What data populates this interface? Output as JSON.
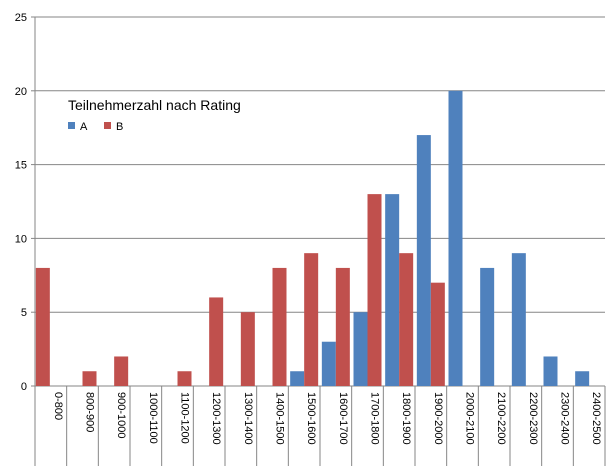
{
  "chart_data": {
    "type": "bar",
    "title": "Teilnehmerzahl nach Rating",
    "xlabel": "",
    "ylabel": "",
    "ylim": [
      0,
      25
    ],
    "yticks": [
      0,
      5,
      10,
      15,
      20,
      25
    ],
    "grid": true,
    "legend_position": "top-left",
    "categories": [
      "0-800",
      "800-900",
      "900-1000",
      "1000-1100",
      "1100-1200",
      "1200-1300",
      "1300-1400",
      "1400-1500",
      "1500-1600",
      "1600-1700",
      "1700-1800",
      "1800-1900",
      "1900-2000",
      "2000-2100",
      "2100-2200",
      "2200-2300",
      "2300-2400",
      "2400-2500"
    ],
    "series": [
      {
        "name": "A",
        "color": "#4f81bd",
        "values": [
          0,
          0,
          0,
          0,
          0,
          0,
          0,
          0,
          1,
          3,
          5,
          13,
          17,
          20,
          8,
          9,
          2,
          1
        ]
      },
      {
        "name": "B",
        "color": "#c0504d",
        "values": [
          8,
          1,
          2,
          0,
          1,
          6,
          5,
          8,
          9,
          8,
          13,
          9,
          7,
          0,
          0,
          0,
          0,
          0
        ]
      }
    ]
  }
}
